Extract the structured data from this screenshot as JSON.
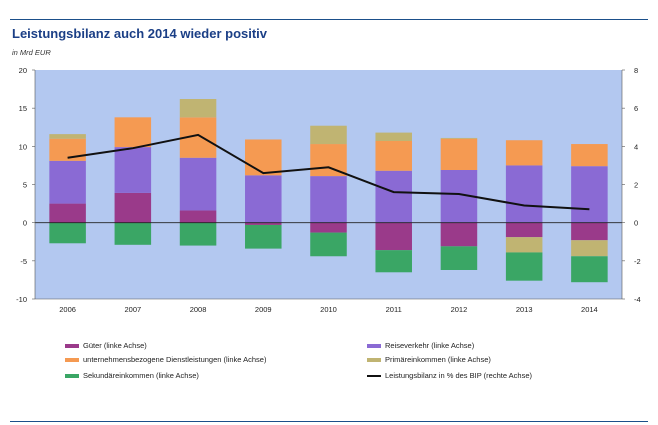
{
  "header": {
    "title": "Leistungsbilanz auch 2014 wieder positiv",
    "unit": "in Mrd EUR"
  },
  "colors": {
    "plot_bg": "#b3c8f0",
    "gueter": "#9a3a8a",
    "reiseverkehr": "#8a6ad4",
    "dienstleistungen": "#f59a52",
    "primaer": "#c0b472",
    "sekundaer": "#3aa665",
    "line": "#111111"
  },
  "chart_data": {
    "type": "bar",
    "stacked": true,
    "categories": [
      "2006",
      "2007",
      "2008",
      "2009",
      "2010",
      "2011",
      "2012",
      "2013",
      "2014"
    ],
    "series": [
      {
        "key": "gueter",
        "name": "Güter (linke Achse)",
        "values": [
          2.5,
          3.9,
          1.6,
          -0.3,
          -1.3,
          -3.6,
          -3.1,
          -1.9,
          -2.3
        ]
      },
      {
        "key": "reiseverkehr",
        "name": "Reiseverkehr (linke Achse)",
        "values": [
          5.6,
          6.0,
          6.9,
          6.2,
          6.1,
          6.8,
          6.9,
          7.5,
          7.4
        ]
      },
      {
        "key": "dienstleistungen",
        "name": "unternehmensbezogene Dienstleistungen (linke Achse)",
        "values": [
          2.9,
          3.9,
          5.3,
          4.7,
          4.2,
          3.9,
          4.1,
          3.3,
          2.9
        ]
      },
      {
        "key": "primaer",
        "name": "Primäreinkommen (linke Achse)",
        "values": [
          0.6,
          0.0,
          2.4,
          0.0,
          2.4,
          1.1,
          0.1,
          -2.0,
          -2.1
        ]
      },
      {
        "key": "sekundaer",
        "name": "Sekundäreinkommen (linke Achse)",
        "values": [
          -2.7,
          -2.9,
          -3.0,
          -3.1,
          -3.1,
          -2.9,
          -3.1,
          -3.7,
          -3.4
        ]
      }
    ],
    "line": {
      "name": "Leistungsbilanz in % des BIP (rechte Achse)",
      "axis": "right",
      "values": [
        3.4,
        3.9,
        4.6,
        2.6,
        2.9,
        1.6,
        1.5,
        0.9,
        0.7
      ]
    },
    "ylim_left": [
      -10,
      20
    ],
    "yticks_left": [
      "20",
      "15",
      "10",
      "5",
      "0",
      "-5",
      "-10"
    ],
    "ylim_right": [
      -4,
      8
    ],
    "yticks_right": [
      "8",
      "6",
      "4",
      "2",
      "0",
      "-2",
      "-4"
    ],
    "xlabel": "",
    "ylabel": ""
  }
}
